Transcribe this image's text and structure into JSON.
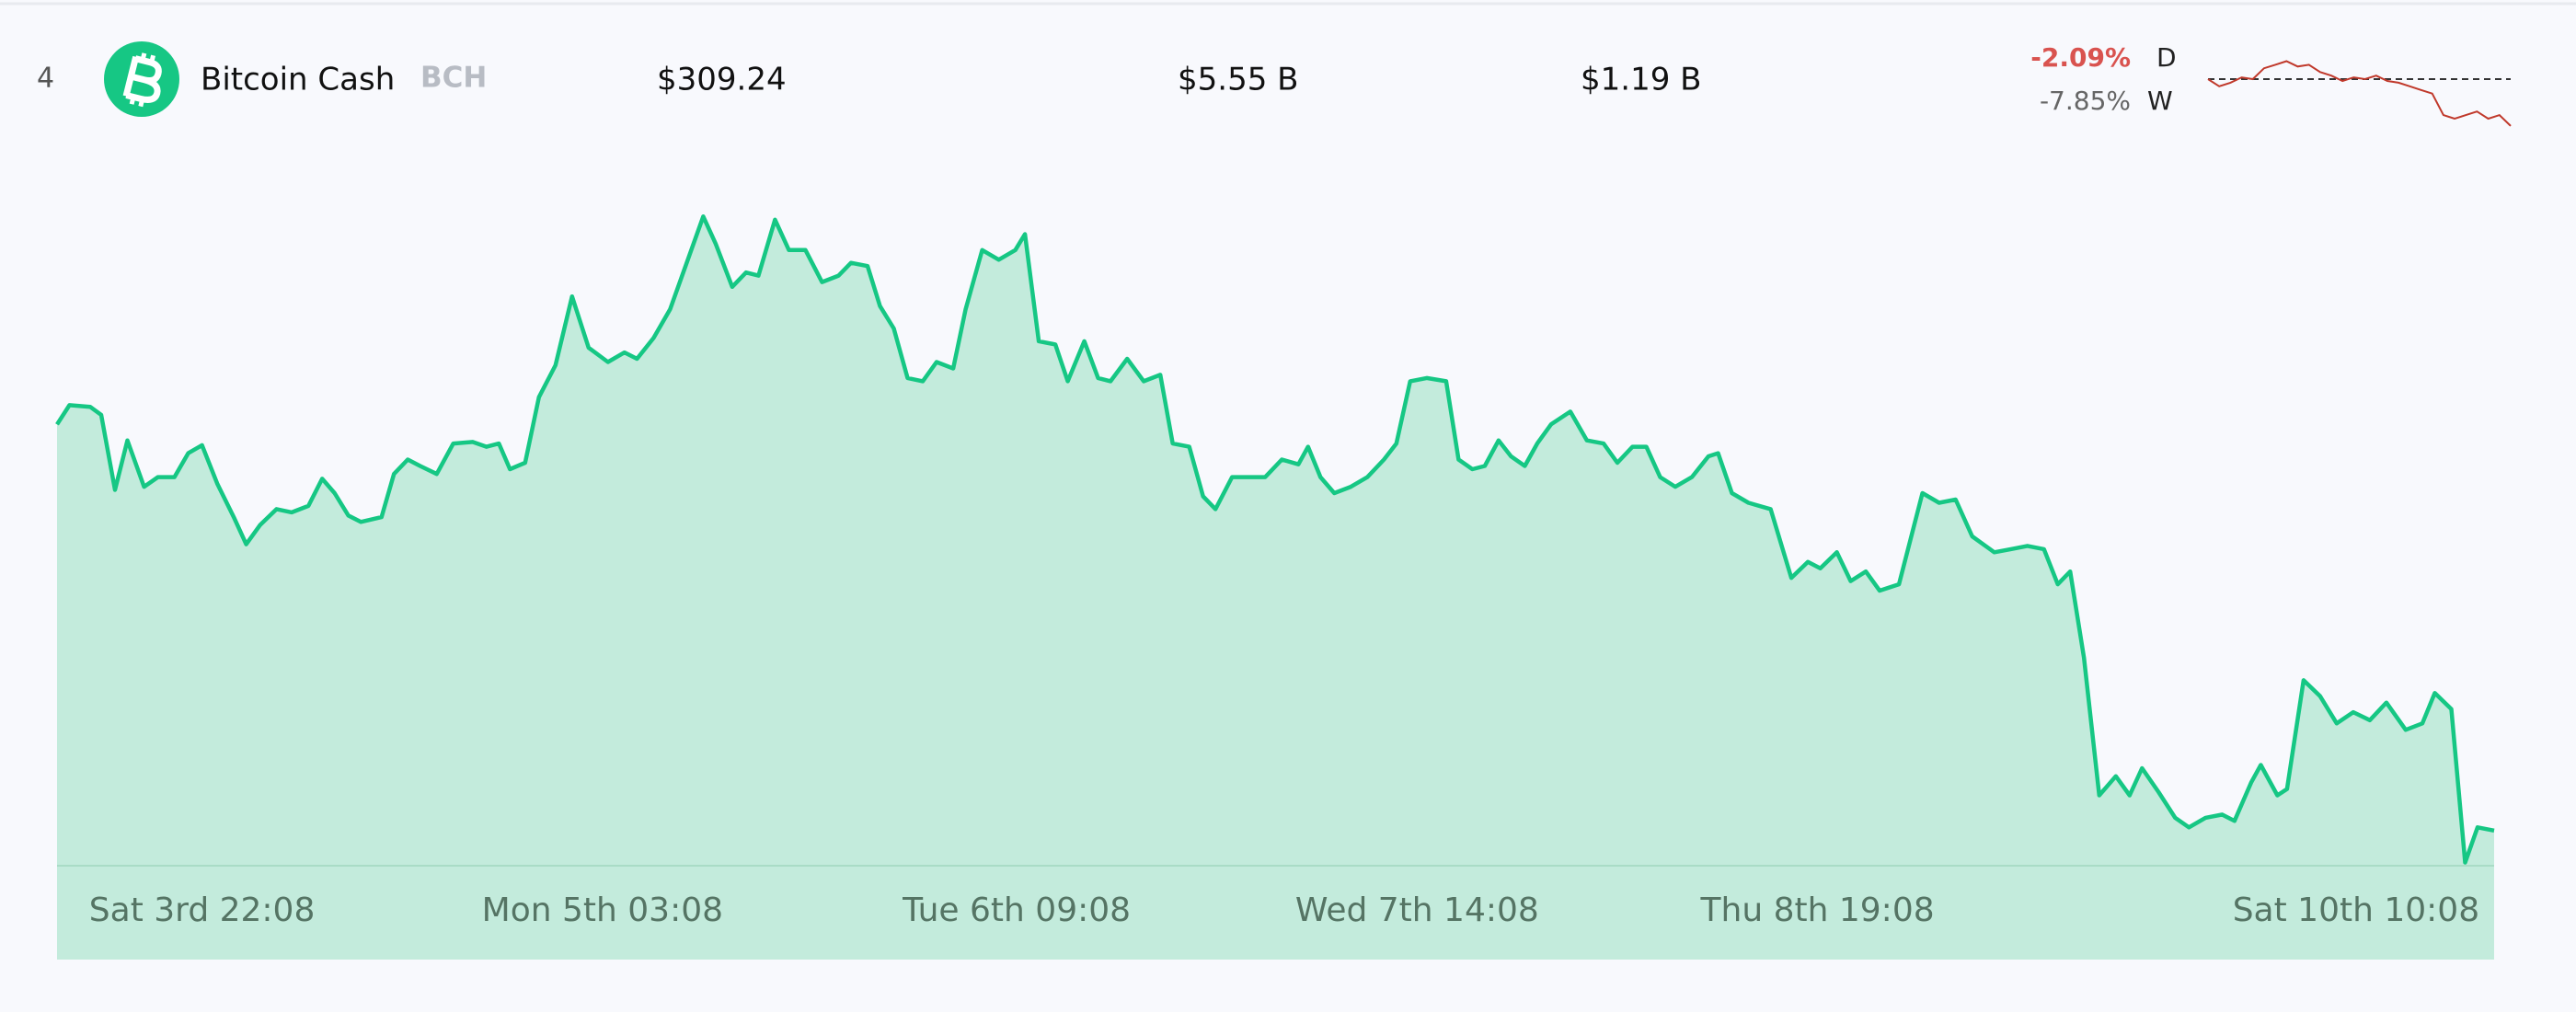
{
  "row": {
    "rank": "4",
    "name": "Bitcoin Cash",
    "symbol": "BCH",
    "price": "$309.24",
    "market_cap": "$5.55 B",
    "volume": "$1.19 B",
    "change_day": "-2.09%",
    "day_label": "D",
    "change_week": "-7.85%",
    "week_label": "W"
  },
  "chart_data": [
    {
      "type": "area",
      "color": "#16c784",
      "fill": "#c3ebdc",
      "xlim": [
        -10.5,
        166
      ],
      "ylim": [
        308,
        350
      ],
      "xticks": [
        {
          "value": 0,
          "label": "Sat 3rd 22:08"
        },
        {
          "value": 29,
          "label": "Mon 5th 03:08"
        },
        {
          "value": 59,
          "label": "Tue 6th 09:08"
        },
        {
          "value": 88,
          "label": "Wed 7th 14:08"
        },
        {
          "value": 117,
          "label": "Thu 8th 19:08"
        },
        {
          "value": 156,
          "label": "Sat 10th 10:08"
        }
      ],
      "x": [
        -10.5,
        -9.6,
        -8.1,
        -7.3,
        -6.3,
        -5.4,
        -4.2,
        -3.2,
        -2.0,
        -1.0,
        0,
        1.1,
        2.3,
        3.2,
        4.2,
        5.4,
        6.5,
        7.7,
        8.7,
        9.6,
        10.6,
        11.5,
        13.0,
        13.9,
        14.9,
        15.8,
        17.0,
        18.2,
        19.6,
        20.6,
        21.5,
        22.3,
        23.4,
        24.4,
        25.6,
        26.8,
        28.0,
        29.4,
        30.6,
        31.5,
        32.7,
        33.9,
        35.1,
        36.3,
        37.2,
        38.4,
        39.4,
        40.3,
        41.5,
        42.5,
        43.7,
        44.9,
        46.1,
        47.0,
        48.2,
        49.1,
        50.1,
        51.1,
        52.2,
        53.2,
        54.4,
        55.3,
        56.5,
        57.7,
        58.9,
        59.6,
        60.6,
        61.8,
        62.7,
        63.9,
        64.9,
        65.8,
        67.0,
        68.2,
        69.4,
        70.3,
        71.5,
        72.5,
        73.4,
        74.6,
        75.8,
        77.0,
        78.2,
        79.4,
        80.1,
        81.0,
        82.0,
        83.2,
        84.4,
        85.6,
        86.5,
        87.5,
        88.7,
        90.1,
        91.0,
        92.0,
        92.9,
        93.9,
        94.8,
        95.8,
        96.7,
        97.7,
        99.1,
        100.3,
        101.5,
        102.5,
        103.6,
        104.6,
        105.6,
        106.7,
        107.9,
        109.1,
        109.8,
        110.8,
        112.0,
        113.6,
        115.1,
        116.3,
        117.2,
        118.4,
        119.4,
        120.5,
        121.5,
        122.9,
        124.6,
        125.8,
        127.0,
        128.2,
        129.8,
        131.0,
        132.2,
        133.4,
        134.4,
        135.3,
        136.3,
        137.4,
        138.6,
        139.6,
        140.5,
        141.7,
        142.9,
        143.9,
        145.1,
        146.3,
        147.2,
        148.4,
        149.1,
        150.3,
        151.0,
        152.2,
        153.4,
        154.6,
        155.8,
        157.0,
        158.2,
        159.6,
        160.8,
        161.7,
        162.9,
        163.9,
        164.8,
        166.0
      ],
      "values": [
        335.6,
        336.8,
        336.7,
        336.2,
        331.5,
        334.6,
        331.7,
        332.3,
        332.3,
        333.8,
        334.3,
        331.9,
        329.8,
        328.1,
        329.3,
        330.3,
        330.1,
        330.5,
        332.2,
        331.3,
        329.9,
        329.5,
        329.8,
        332.5,
        333.4,
        333.0,
        332.5,
        334.4,
        334.5,
        334.2,
        334.4,
        332.8,
        333.2,
        337.3,
        339.3,
        343.6,
        340.4,
        339.5,
        340.1,
        339.7,
        341.0,
        342.8,
        345.7,
        348.6,
        346.9,
        344.2,
        345.1,
        344.9,
        348.4,
        346.5,
        346.5,
        344.5,
        344.9,
        345.7,
        345.5,
        343.0,
        341.6,
        338.5,
        338.3,
        339.5,
        339.1,
        342.8,
        346.5,
        345.9,
        346.5,
        347.5,
        340.8,
        340.6,
        338.3,
        340.8,
        338.5,
        338.3,
        339.7,
        338.3,
        338.7,
        334.4,
        334.2,
        331.1,
        330.3,
        332.3,
        332.3,
        332.3,
        333.4,
        333.1,
        334.2,
        332.3,
        331.3,
        331.7,
        332.3,
        333.4,
        334.4,
        338.3,
        338.5,
        338.3,
        333.4,
        332.8,
        333.0,
        334.6,
        333.6,
        333.0,
        334.4,
        335.6,
        336.4,
        334.6,
        334.4,
        333.2,
        334.2,
        334.2,
        332.3,
        331.7,
        332.3,
        333.6,
        333.8,
        331.3,
        330.7,
        330.3,
        326.0,
        327.0,
        326.6,
        327.6,
        325.8,
        326.4,
        325.2,
        325.6,
        331.3,
        330.7,
        330.9,
        328.6,
        327.6,
        327.8,
        328.0,
        327.8,
        325.6,
        326.4,
        321.0,
        312.4,
        313.6,
        312.4,
        314.1,
        312.6,
        311.0,
        310.4,
        311.0,
        311.2,
        310.8,
        313.2,
        314.3,
        312.4,
        312.8,
        319.6,
        318.6,
        316.9,
        317.6,
        317.1,
        318.2,
        316.5,
        316.9,
        318.8,
        317.8,
        308.2,
        310.4,
        310.2
      ]
    },
    {
      "type": "sparkline",
      "color": "#c0392b",
      "ylim": [
        305,
        350
      ],
      "reference": 335.5,
      "values": [
        335.5,
        331.5,
        333.5,
        336.5,
        335.5,
        341.6,
        343.6,
        345.6,
        342.6,
        343.6,
        339.5,
        337.5,
        334.5,
        336.5,
        335.5,
        337.5,
        334.5,
        333.5,
        331.5,
        329.4,
        327.4,
        315.3,
        313.3,
        315.3,
        317.3,
        313.3,
        315.3,
        309.2
      ]
    }
  ]
}
